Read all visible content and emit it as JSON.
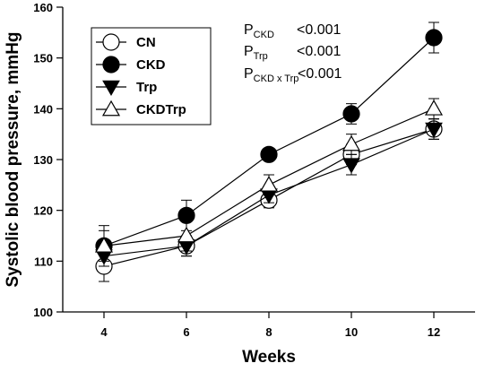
{
  "chart_data": {
    "type": "line",
    "xlabel": "Weeks",
    "ylabel": "Systolic blood pressure, mmHg",
    "x": [
      4,
      6,
      8,
      10,
      12
    ],
    "xticks": [
      "4",
      "6",
      "8",
      "10",
      "12"
    ],
    "yticks": [
      "100",
      "110",
      "120",
      "130",
      "140",
      "150",
      "160"
    ],
    "xlim": [
      3,
      13
    ],
    "ylim": [
      100,
      160
    ],
    "grid": false,
    "legend_position": "top-left",
    "series": [
      {
        "name": "CN",
        "marker": "circle-open",
        "values": [
          109,
          113,
          122,
          131,
          136
        ],
        "errors": [
          3,
          2,
          1.5,
          2,
          2
        ]
      },
      {
        "name": "CKD",
        "marker": "circle-filled",
        "values": [
          113,
          119,
          131,
          139,
          154
        ],
        "errors": [
          4,
          3,
          1,
          2,
          3
        ]
      },
      {
        "name": "Trp",
        "marker": "triangle-down-filled",
        "values": [
          111,
          113,
          123,
          129,
          136
        ],
        "errors": [
          2,
          2,
          1.5,
          2,
          2
        ]
      },
      {
        "name": "CKDTrp",
        "marker": "triangle-up-open",
        "values": [
          113,
          115,
          125,
          133,
          140
        ],
        "errors": [
          3,
          3,
          2,
          2,
          2
        ]
      }
    ],
    "annotations": [
      {
        "main": "P",
        "sub": "CKD",
        "value": "<0.001"
      },
      {
        "main": "P",
        "sub": "Trp",
        "value": "<0.001"
      },
      {
        "main": "P",
        "sub": "CKD x Trp",
        "value": "<0.001"
      }
    ]
  }
}
